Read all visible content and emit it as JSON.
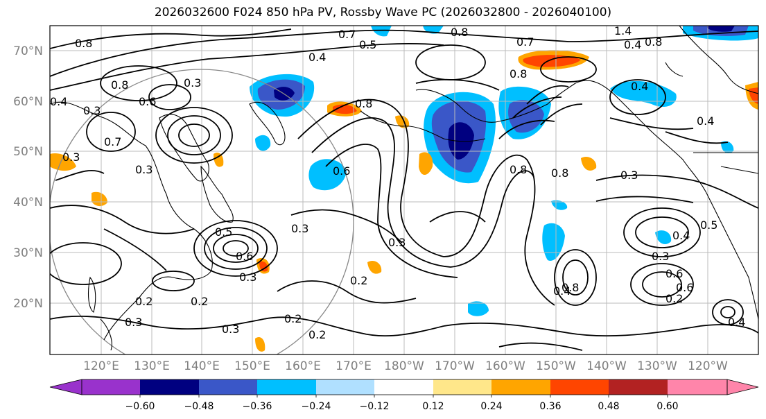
{
  "title": "2026032600 F024 850 hPa PV, Rossby Wave PC (2026032800 - 2026040100)",
  "lat_labels": [
    "70°N",
    "60°N",
    "50°N",
    "40°N",
    "30°N",
    "20°N"
  ],
  "lon_labels": [
    "120°E",
    "130°E",
    "140°E",
    "150°E",
    "160°E",
    "170°E",
    "180°W",
    "170°W",
    "160°W",
    "150°W",
    "140°W",
    "130°W",
    "120°W"
  ],
  "colorbar": {
    "colors": [
      "#9932cc",
      "#000080",
      "#3a57c8",
      "#00bfff",
      "#b0e0ff",
      "#ffffff",
      "#ffe78a",
      "#ffa500",
      "#ff4500",
      "#b22222",
      "#ff85aa"
    ],
    "tick_labels": [
      "−0.60",
      "−0.48",
      "−0.36",
      "−0.24",
      "−0.12",
      "0.12",
      "0.24",
      "0.36",
      "0.48",
      "0.60"
    ]
  },
  "contour_labels": [
    "0.8",
    "0.7",
    "0.5",
    "0.4",
    "0.8",
    "0.7",
    "1.4",
    "0.8",
    "0.4",
    "0.8",
    "0.8",
    "0.6",
    "0.7",
    "0.3",
    "0.4",
    "0.3",
    "0.3",
    "0.8",
    "0.3",
    "0.8",
    "0.6",
    "0.4",
    "0.3",
    "0.3",
    "0.5",
    "0.6",
    "0.3",
    "0.3",
    "0.8",
    "0.4",
    "0.2",
    "0.2",
    "0.2",
    "0.3",
    "0.3",
    "0.2",
    "0.2",
    "0.6",
    "0.3",
    "0.4",
    "0.8",
    "0.4",
    "0.6",
    "0.2",
    "0.5",
    "0.4"
  ],
  "shading_colors": {
    "neg_strong": "#000080",
    "neg_mid": "#3a57c8",
    "neg_light": "#00bfff",
    "neg_faint": "#b0e0ff",
    "pos_faint": "#ffe78a",
    "pos_mid": "#ffa500",
    "pos_strong": "#ff4500",
    "pos_dark": "#b22222"
  }
}
